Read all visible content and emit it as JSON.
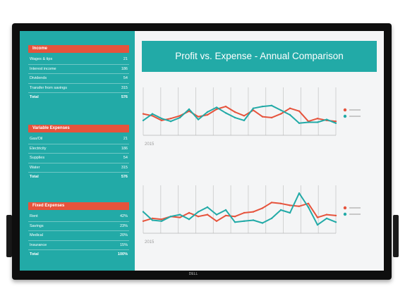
{
  "brand": {
    "logo": "DELL"
  },
  "sidebar": {
    "sections": [
      {
        "title": "Income",
        "rows": [
          {
            "label": "Wages & tips",
            "value": "21"
          },
          {
            "label": "Interest income",
            "value": "186"
          },
          {
            "label": "Dividends",
            "value": "54"
          },
          {
            "label": "Transfer from savings",
            "value": "315"
          },
          {
            "label": "Total",
            "value": "576"
          }
        ]
      },
      {
        "title": "Variable Expenses",
        "rows": [
          {
            "label": "Gas/Oil",
            "value": "21"
          },
          {
            "label": "Electricity",
            "value": "186"
          },
          {
            "label": "Supplies",
            "value": "54"
          },
          {
            "label": "Water",
            "value": "315"
          },
          {
            "label": "Total",
            "value": "576"
          }
        ]
      },
      {
        "title": "Fixed Expenses",
        "rows": [
          {
            "label": "Rent",
            "value": "42%"
          },
          {
            "label": "Savings",
            "value": "23%"
          },
          {
            "label": "Medical",
            "value": "20%"
          },
          {
            "label": "Insurance",
            "value": "15%"
          },
          {
            "label": "Total",
            "value": "100%"
          }
        ]
      }
    ]
  },
  "main": {
    "title": "Profit vs. Expense - Annual Comparison"
  },
  "colors": {
    "teal": "#22aaa7",
    "orange": "#e6533c"
  },
  "chart_data": [
    {
      "type": "line",
      "x": [
        1,
        2,
        3,
        4,
        5,
        6,
        7,
        8,
        9,
        10,
        11,
        12,
        13,
        14,
        15,
        16,
        17,
        18,
        19,
        20,
        21,
        22
      ],
      "xlabel": "2015",
      "series": [
        {
          "color": "#e6533c",
          "values": [
            46,
            42,
            32,
            36,
            42,
            52,
            40,
            44,
            56,
            62,
            50,
            42,
            54,
            40,
            38,
            46,
            58,
            52,
            30,
            36,
            32,
            30
          ]
        },
        {
          "color": "#22aaa7",
          "values": [
            32,
            46,
            36,
            30,
            38,
            56,
            34,
            50,
            60,
            48,
            38,
            32,
            58,
            62,
            64,
            54,
            44,
            26,
            28,
            28,
            34,
            26
          ]
        }
      ]
    },
    {
      "type": "line",
      "x": [
        1,
        2,
        3,
        4,
        5,
        6,
        7,
        8,
        9,
        10,
        11,
        12,
        13,
        14,
        15,
        16,
        17,
        18,
        19,
        20,
        21,
        22
      ],
      "xlabel": "2015",
      "series": [
        {
          "color": "#e6533c",
          "values": [
            26,
            32,
            30,
            36,
            34,
            44,
            36,
            40,
            26,
            38,
            36,
            44,
            46,
            54,
            66,
            64,
            60,
            58,
            64,
            34,
            40,
            38
          ]
        },
        {
          "color": "#22aaa7",
          "values": [
            46,
            28,
            26,
            36,
            40,
            30,
            46,
            56,
            40,
            50,
            24,
            26,
            28,
            22,
            32,
            50,
            44,
            86,
            56,
            18,
            32,
            24
          ]
        }
      ]
    }
  ]
}
